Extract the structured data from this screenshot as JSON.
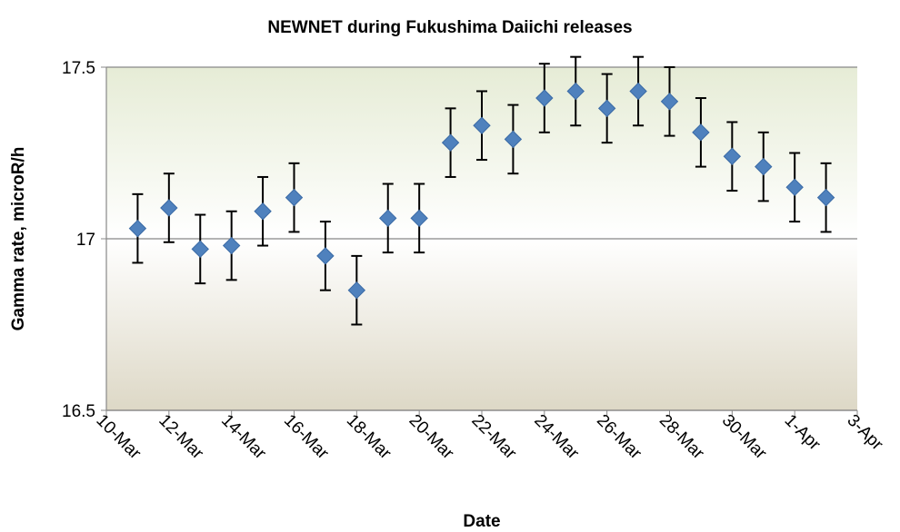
{
  "chart_data": {
    "type": "scatter",
    "title": "NEWNET during Fukushima Daiichi releases",
    "x_label": "Date",
    "y_label": "Gamma rate, microR/h",
    "categories": [
      "10-Mar",
      null,
      "12-Mar",
      null,
      "14-Mar",
      null,
      "16-Mar",
      null,
      "18-Mar",
      null,
      "20-Mar",
      null,
      "22-Mar",
      null,
      "24-Mar",
      null,
      "26-Mar",
      null,
      "28-Mar",
      null,
      "30-Mar",
      null,
      "1-Apr",
      null,
      "3-Apr"
    ],
    "values": [
      null,
      17.03,
      17.09,
      16.97,
      16.98,
      17.08,
      17.12,
      16.95,
      16.85,
      17.06,
      17.06,
      17.28,
      17.33,
      17.29,
      17.41,
      17.43,
      17.38,
      17.43,
      17.4,
      17.31,
      17.24,
      17.21,
      17.15,
      17.12,
      null
    ],
    "errors": [
      null,
      0.1,
      0.1,
      0.1,
      0.1,
      0.1,
      0.1,
      0.1,
      0.1,
      0.1,
      0.1,
      0.1,
      0.1,
      0.1,
      0.1,
      0.1,
      0.1,
      0.1,
      0.1,
      0.1,
      0.1,
      0.1,
      0.1,
      0.1,
      null
    ],
    "color": "#4f81bd",
    "ylim": [
      16.5,
      17.5
    ],
    "yticks": [
      16.5,
      17,
      17.5
    ],
    "grid": true
  }
}
